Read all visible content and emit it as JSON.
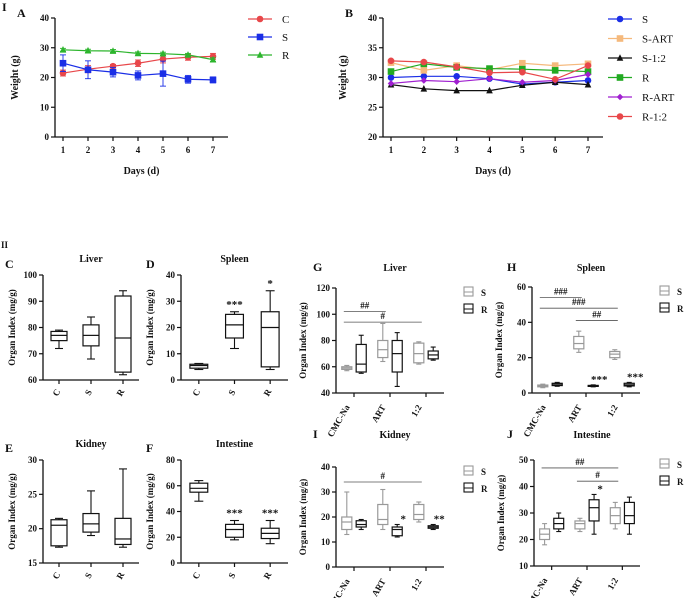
{
  "figure": {
    "corner_label_top": "I",
    "corner_label_mid": "II"
  },
  "chart_data": [
    {
      "id": "A",
      "type": "line",
      "panel_label": "A",
      "title": "",
      "xlabel": "Days (d)",
      "ylabel": "Weight (g)",
      "categories": [
        "1",
        "2",
        "3",
        "4",
        "5",
        "6",
        "7"
      ],
      "ylim": [
        0,
        40
      ],
      "yticks": [
        0,
        10,
        20,
        30,
        40
      ],
      "legend_position": "top-right",
      "series": [
        {
          "name": "C",
          "color": "#e8474a",
          "marker": "circle",
          "values": [
            21.5,
            22.8,
            23.8,
            24.8,
            26.2,
            26.8,
            27.1
          ],
          "err": [
            1.0,
            1.2,
            0.6,
            1.1,
            1.3,
            1.0,
            1.0
          ]
        },
        {
          "name": "S",
          "color": "#1a2ee6",
          "marker": "square",
          "values": [
            24.8,
            22.6,
            21.8,
            20.7,
            21.3,
            19.4,
            19.2
          ],
          "err": [
            2.8,
            3.0,
            1.6,
            1.5,
            4.2,
            1.3,
            1.0
          ]
        },
        {
          "name": "R",
          "color": "#2db52d",
          "marker": "triangle",
          "values": [
            29.3,
            29.0,
            28.9,
            28.1,
            28.0,
            27.6,
            26.0
          ],
          "err": [
            0.5,
            0.5,
            0.5,
            0.5,
            0.5,
            0.5,
            0.6
          ]
        }
      ]
    },
    {
      "id": "B",
      "type": "line",
      "panel_label": "B",
      "title": "",
      "xlabel": "Days (d)",
      "ylabel": "Weight (g)",
      "categories": [
        "1",
        "2",
        "3",
        "4",
        "5",
        "6",
        "7"
      ],
      "ylim": [
        20,
        40
      ],
      "yticks": [
        20,
        25,
        30,
        35,
        40
      ],
      "legend_position": "right",
      "series": [
        {
          "name": "S",
          "color": "#1a2ee6",
          "marker": "circle",
          "values": [
            30.0,
            30.2,
            30.2,
            29.8,
            28.9,
            29.2,
            29.5
          ]
        },
        {
          "name": "S-ART",
          "color": "#f5b97c",
          "marker": "square",
          "values": [
            32.5,
            31.2,
            32.0,
            31.3,
            32.4,
            32.0,
            32.3
          ]
        },
        {
          "name": "S-1:2",
          "color": "#111111",
          "marker": "triangle",
          "values": [
            28.8,
            28.1,
            27.8,
            27.8,
            28.7,
            29.2,
            28.8
          ]
        },
        {
          "name": "R",
          "color": "#22aa22",
          "marker": "square",
          "values": [
            31.0,
            32.3,
            31.7,
            31.5,
            31.4,
            31.2,
            31.0
          ]
        },
        {
          "name": "R-ART",
          "color": "#a020d0",
          "marker": "diamond",
          "values": [
            29.0,
            29.5,
            29.3,
            29.8,
            29.2,
            29.5,
            30.5
          ]
        },
        {
          "name": "R-1:2",
          "color": "#e8474a",
          "marker": "circle",
          "values": [
            32.8,
            32.6,
            31.8,
            30.8,
            30.9,
            29.7,
            32.0
          ]
        }
      ]
    },
    {
      "id": "C",
      "type": "box",
      "panel_label": "C",
      "title": "Liver",
      "ylabel": "Organ Index (mg/g)",
      "ylim": [
        60,
        100
      ],
      "yticks": [
        60,
        70,
        80,
        90,
        100
      ],
      "categories": [
        "C",
        "S",
        "R"
      ],
      "boxes": [
        {
          "group": "C",
          "min": 72,
          "q1": 75,
          "median": 77,
          "q3": 78.5,
          "max": 79,
          "sig": ""
        },
        {
          "group": "S",
          "min": 68,
          "q1": 73,
          "median": 77,
          "q3": 81,
          "max": 84,
          "sig": ""
        },
        {
          "group": "R",
          "min": 62,
          "q1": 63,
          "median": 76,
          "q3": 92,
          "max": 94,
          "sig": ""
        }
      ]
    },
    {
      "id": "D",
      "type": "box",
      "panel_label": "D",
      "title": "Spleen",
      "ylabel": "Organ Index (mg/g)",
      "ylim": [
        0,
        40
      ],
      "yticks": [
        0,
        10,
        20,
        30,
        40
      ],
      "categories": [
        "C",
        "S",
        "R"
      ],
      "boxes": [
        {
          "group": "C",
          "min": 4,
          "q1": 4.5,
          "median": 5.5,
          "q3": 6,
          "max": 6.3,
          "sig": ""
        },
        {
          "group": "S",
          "min": 12,
          "q1": 16,
          "median": 21,
          "q3": 25,
          "max": 26,
          "sig": "***"
        },
        {
          "group": "R",
          "min": 4,
          "q1": 5,
          "median": 20,
          "q3": 26,
          "max": 34,
          "sig": "*"
        }
      ]
    },
    {
      "id": "E",
      "type": "box",
      "panel_label": "E",
      "title": "Kidney",
      "ylabel": "Organ Index (mg/g)",
      "ylim": [
        15,
        30
      ],
      "yticks": [
        15,
        20,
        25,
        30
      ],
      "categories": [
        "C",
        "S",
        "R"
      ],
      "boxes": [
        {
          "group": "C",
          "min": 17.3,
          "q1": 17.5,
          "median": 20.5,
          "q3": 21.3,
          "max": 21.5,
          "sig": ""
        },
        {
          "group": "S",
          "min": 19,
          "q1": 19.5,
          "median": 20.7,
          "q3": 22.2,
          "max": 25.5,
          "sig": ""
        },
        {
          "group": "R",
          "min": 17.3,
          "q1": 17.7,
          "median": 18.5,
          "q3": 21.5,
          "max": 28.7,
          "sig": ""
        }
      ]
    },
    {
      "id": "F",
      "type": "box",
      "panel_label": "F",
      "title": "Intestine",
      "ylabel": "Organ Index (mg/g)",
      "ylim": [
        0,
        80
      ],
      "yticks": [
        0,
        20,
        40,
        60,
        80
      ],
      "categories": [
        "C",
        "S",
        "R"
      ],
      "boxes": [
        {
          "group": "C",
          "min": 48,
          "q1": 55,
          "median": 58,
          "q3": 62,
          "max": 64,
          "sig": ""
        },
        {
          "group": "S",
          "min": 18,
          "q1": 20,
          "median": 26,
          "q3": 30,
          "max": 33,
          "sig": "***"
        },
        {
          "group": "R",
          "min": 15,
          "q1": 19,
          "median": 23,
          "q3": 27,
          "max": 33,
          "sig": "***"
        }
      ]
    },
    {
      "id": "G",
      "type": "box-grouped",
      "panel_label": "G",
      "title": "Liver",
      "ylabel": "Organ Index (mg/g)",
      "ylim": [
        40,
        120
      ],
      "yticks": [
        40,
        60,
        80,
        100,
        120
      ],
      "categories": [
        "CMC-Na",
        "ART",
        "1:2"
      ],
      "legend": [
        "S",
        "R"
      ],
      "boxes": [
        {
          "group": "CMC-Na",
          "series": "S",
          "min": 57,
          "q1": 58,
          "median": 59,
          "q3": 60,
          "max": 61,
          "sig": ""
        },
        {
          "group": "CMC-Na",
          "series": "R",
          "min": 55,
          "q1": 56,
          "median": 62,
          "q3": 77,
          "max": 84,
          "sig": ""
        },
        {
          "group": "ART",
          "series": "S",
          "min": 64,
          "q1": 67,
          "median": 73,
          "q3": 80,
          "max": 93,
          "sig": ""
        },
        {
          "group": "ART",
          "series": "R",
          "min": 45,
          "q1": 56,
          "median": 70,
          "q3": 80,
          "max": 86,
          "sig": ""
        },
        {
          "group": "1:2",
          "series": "S",
          "min": 62,
          "q1": 63,
          "median": 70,
          "q3": 78,
          "max": 79,
          "sig": ""
        },
        {
          "group": "1:2",
          "series": "R",
          "min": 65,
          "q1": 66,
          "median": 69,
          "q3": 72,
          "max": 75,
          "sig": ""
        }
      ],
      "brackets": [
        {
          "label": "##",
          "from": "CMC-Na/S",
          "to": "ART/S",
          "level": 102
        },
        {
          "label": "#",
          "from": "CMC-Na/S",
          "to": "1:2/S",
          "level": 94
        }
      ]
    },
    {
      "id": "H",
      "type": "box-grouped",
      "panel_label": "H",
      "title": "Spleen",
      "ylabel": "Organ Index (mg/g)",
      "ylim": [
        0,
        60
      ],
      "yticks": [
        0,
        20,
        40,
        60
      ],
      "categories": [
        "CMC-Na",
        "ART",
        "1:2"
      ],
      "legend": [
        "S",
        "R"
      ],
      "boxes": [
        {
          "group": "CMC-Na",
          "series": "S",
          "min": 3,
          "q1": 3.5,
          "median": 4,
          "q3": 4.5,
          "max": 5,
          "sig": ""
        },
        {
          "group": "CMC-Na",
          "series": "R",
          "min": 3.8,
          "q1": 4.2,
          "median": 5,
          "q3": 5.5,
          "max": 6,
          "sig": ""
        },
        {
          "group": "ART",
          "series": "S",
          "min": 23,
          "q1": 25,
          "median": 28,
          "q3": 32,
          "max": 35,
          "sig": ""
        },
        {
          "group": "ART",
          "series": "R",
          "min": 3.5,
          "q1": 3.8,
          "median": 4,
          "q3": 4.3,
          "max": 4.6,
          "sig": "***"
        },
        {
          "group": "1:2",
          "series": "S",
          "min": 19,
          "q1": 20,
          "median": 22,
          "q3": 23.5,
          "max": 24.5,
          "sig": ""
        },
        {
          "group": "1:2",
          "series": "R",
          "min": 3.5,
          "q1": 4,
          "median": 4.6,
          "q3": 5.5,
          "max": 6,
          "sig": "***"
        }
      ],
      "brackets": [
        {
          "label": "###",
          "from": "CMC-Na/S",
          "to": "ART/S",
          "level": 54
        },
        {
          "label": "###",
          "from": "CMC-Na/S",
          "to": "1:2/S",
          "level": 48
        },
        {
          "label": "##",
          "from": "ART/S",
          "to": "1:2/S",
          "level": 41
        }
      ]
    },
    {
      "id": "I",
      "type": "box-grouped",
      "panel_label": "I",
      "title": "Kidney",
      "ylabel": "Organ Index (mg/g)",
      "ylim": [
        0,
        40
      ],
      "yticks": [
        0,
        10,
        20,
        30,
        40
      ],
      "categories": [
        "CMC-Na",
        "ART",
        "1:2"
      ],
      "legend": [
        "S",
        "R"
      ],
      "boxes": [
        {
          "group": "CMC-Na",
          "series": "S",
          "min": 13,
          "q1": 15,
          "median": 18,
          "q3": 20,
          "max": 30,
          "sig": ""
        },
        {
          "group": "CMC-Na",
          "series": "R",
          "min": 15,
          "q1": 16,
          "median": 17,
          "q3": 18.5,
          "max": 19,
          "sig": ""
        },
        {
          "group": "ART",
          "series": "S",
          "min": 15,
          "q1": 17,
          "median": 19,
          "q3": 25,
          "max": 31,
          "sig": ""
        },
        {
          "group": "ART",
          "series": "R",
          "min": 12,
          "q1": 12.5,
          "median": 15,
          "q3": 16,
          "max": 17,
          "sig": "*"
        },
        {
          "group": "1:2",
          "series": "S",
          "min": 18,
          "q1": 19,
          "median": 21,
          "q3": 25,
          "max": 26,
          "sig": ""
        },
        {
          "group": "1:2",
          "series": "R",
          "min": 15,
          "q1": 15.5,
          "median": 16,
          "q3": 16.5,
          "max": 17,
          "sig": "**"
        }
      ],
      "brackets": [
        {
          "label": "#",
          "from": "CMC-Na/S",
          "to": "1:2/S",
          "level": 34
        }
      ]
    },
    {
      "id": "J",
      "type": "box-grouped",
      "panel_label": "J",
      "title": "Intestine",
      "ylabel": "Organ Index (mg/g)",
      "ylim": [
        10,
        50
      ],
      "yticks": [
        10,
        20,
        30,
        40,
        50
      ],
      "categories": [
        "CMC-Na",
        "ART",
        "1:2"
      ],
      "legend": [
        "S",
        "R"
      ],
      "boxes": [
        {
          "group": "CMC-Na",
          "series": "S",
          "min": 18,
          "q1": 20,
          "median": 22,
          "q3": 24,
          "max": 26,
          "sig": ""
        },
        {
          "group": "CMC-Na",
          "series": "R",
          "min": 23,
          "q1": 24,
          "median": 26,
          "q3": 28,
          "max": 30,
          "sig": ""
        },
        {
          "group": "ART",
          "series": "S",
          "min": 23,
          "q1": 24,
          "median": 26,
          "q3": 27,
          "max": 28,
          "sig": ""
        },
        {
          "group": "ART",
          "series": "R",
          "min": 22,
          "q1": 27,
          "median": 32,
          "q3": 35,
          "max": 37,
          "sig": "*"
        },
        {
          "group": "1:2",
          "series": "S",
          "min": 24,
          "q1": 26,
          "median": 29,
          "q3": 32,
          "max": 34,
          "sig": ""
        },
        {
          "group": "1:2",
          "series": "R",
          "min": 22,
          "q1": 26,
          "median": 29,
          "q3": 34,
          "max": 36,
          "sig": ""
        }
      ],
      "brackets": [
        {
          "label": "##",
          "from": "CMC-Na/S",
          "to": "1:2/S",
          "level": 47
        },
        {
          "label": "#",
          "from": "ART/S",
          "to": "1:2/S",
          "level": 42
        }
      ]
    }
  ]
}
